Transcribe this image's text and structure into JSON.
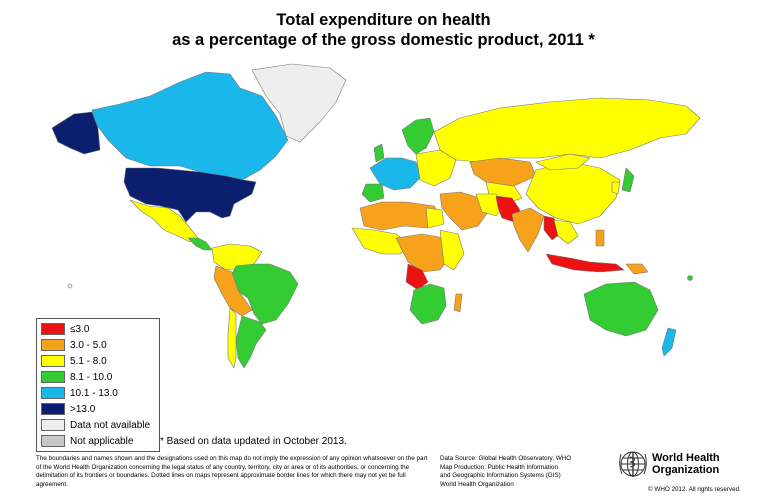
{
  "title": {
    "line1": "Total expenditure on health",
    "line2": "as a percentage of the gross domestic product, 2011 *"
  },
  "colors": {
    "le3": "#ee1111",
    "c3_5": "#f7a21b",
    "c5_8": "#ffff00",
    "c8_10": "#33cc33",
    "c10_13": "#1ab7ea",
    "gt13": "#0b1f6e",
    "not_available": "#eeeeee",
    "not_applicable": "#c8c8c8",
    "ocean": "#ffffff",
    "border": "#777777"
  },
  "legend": {
    "items": [
      {
        "label": "≤3.0",
        "color": "#ee1111"
      },
      {
        "label": "3.0 - 5.0",
        "color": "#f7a21b"
      },
      {
        "label": "5.1 - 8.0",
        "color": "#ffff00"
      },
      {
        "label": "8.1 - 10.0",
        "color": "#33cc33"
      },
      {
        "label": "10.1 - 13.0",
        "color": "#1ab7ea"
      },
      {
        "label": ">13.0",
        "color": "#0b1f6e"
      },
      {
        "label": "Data not available",
        "color": "#eeeeee"
      },
      {
        "label": "Not applicable",
        "color": "#c8c8c8"
      }
    ]
  },
  "footnote": "* Based on data updated in October 2013.",
  "disclaimer": "The boundaries and names shown and the designations used on this map do not imply the expression of any opinion whatsoever on the part of the World Health Organization concerning the legal status of any country, territory, city or area or of its authorities, or concerning the delimitation of its frontiers or boundaries. Dotted lines on maps represent approximate border lines for which there may not yet be full agreement.",
  "source": {
    "line1": "Data Source: Global Health Observatory, WHO",
    "line2": "Map Production: Public Health Information",
    "line3": "and Geographic Information Systems (GIS)",
    "line4": "World Health Organization"
  },
  "who": {
    "line1": "World Health",
    "line2": "Organization"
  },
  "copyright": "© WHO 2012. All rights reserved."
}
